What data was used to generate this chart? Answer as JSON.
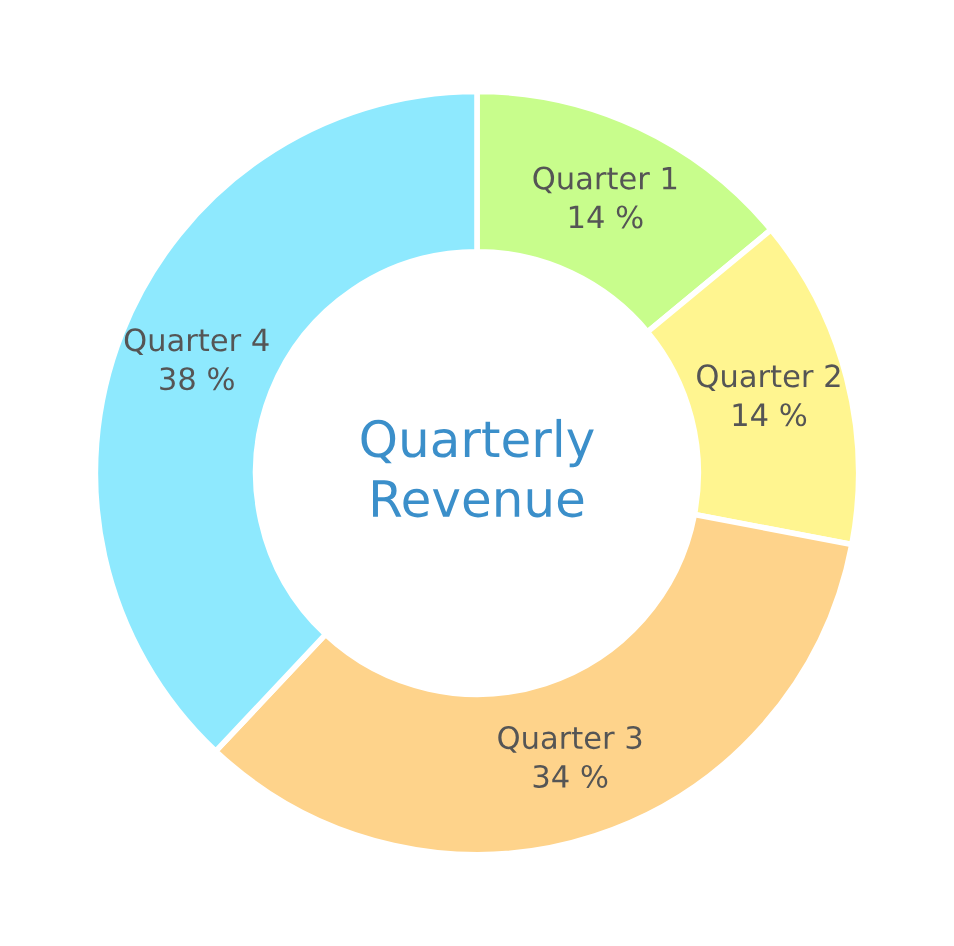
{
  "chart_data": {
    "type": "donut",
    "title": "Quarterly\nRevenue",
    "categories": [
      "Quarter 1",
      "Quarter 2",
      "Quarter 3",
      "Quarter 4"
    ],
    "values": [
      14,
      14,
      34,
      38
    ],
    "value_labels": [
      "14 %",
      "14 %",
      "34 %",
      "38 %"
    ],
    "colors": [
      "#c8fd8c",
      "#fff590",
      "#fed38b",
      "#8ee9fe"
    ]
  }
}
